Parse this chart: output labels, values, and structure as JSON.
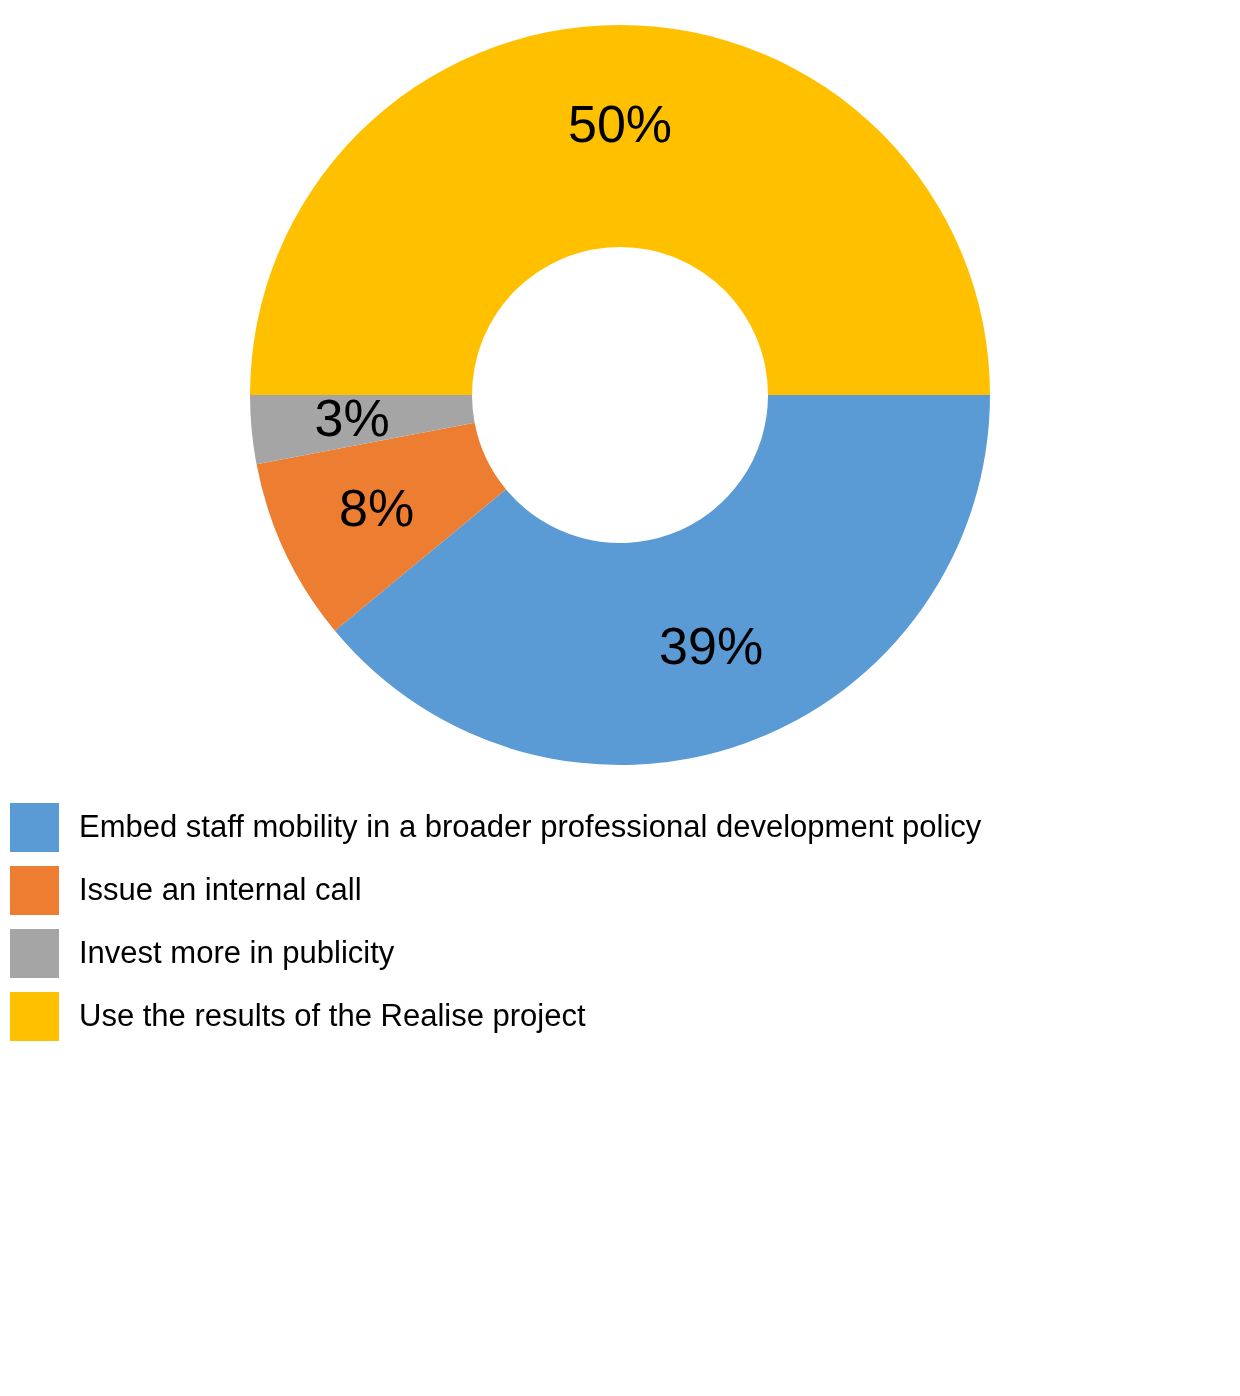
{
  "chart_data": {
    "type": "donut",
    "categories": [
      "Embed staff mobility in a broader professional development policy",
      "Issue an internal call",
      "Invest more in publicity",
      "Use the results of the Realise project"
    ],
    "values": [
      39,
      8,
      3,
      50
    ],
    "colors": [
      "#5b9bd5",
      "#ed7d31",
      "#a5a5a5",
      "#ffc000"
    ],
    "value_labels": [
      "39%",
      "8%",
      "3%",
      "50%"
    ],
    "legend": "bottom"
  }
}
